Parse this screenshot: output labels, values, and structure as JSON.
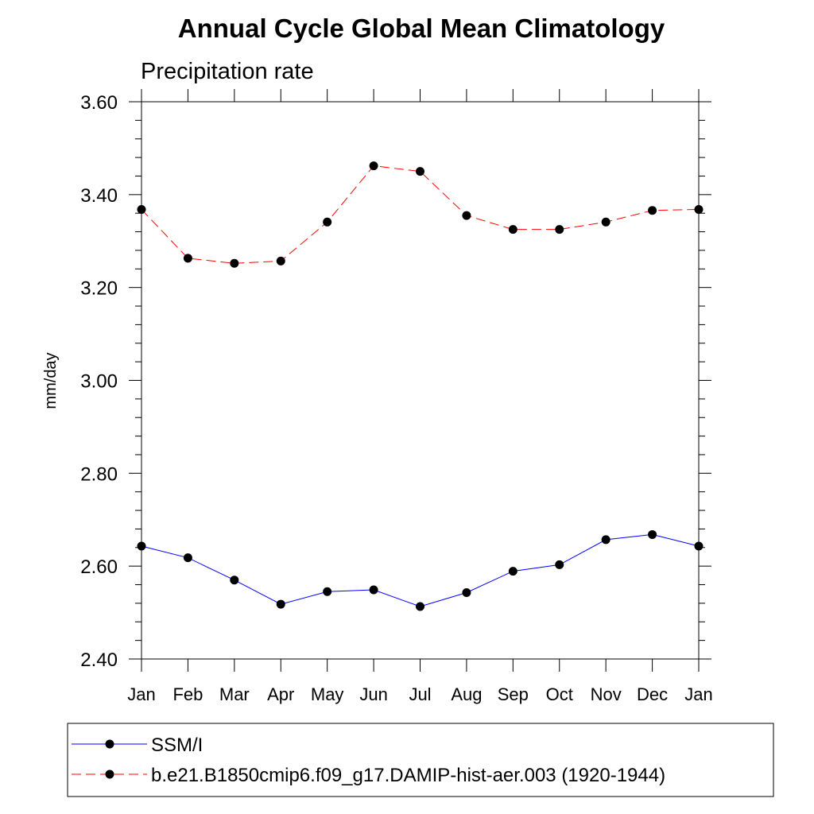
{
  "chart_data": {
    "type": "line",
    "title": "Annual Cycle Global Mean Climatology",
    "subtitle": "Precipitation rate",
    "ylabel": "mm/day",
    "xlabel": "",
    "categories": [
      "Jan",
      "Feb",
      "Mar",
      "Apr",
      "May",
      "Jun",
      "Jul",
      "Aug",
      "Sep",
      "Oct",
      "Nov",
      "Dec",
      "Jan"
    ],
    "ylim": [
      2.4,
      3.6
    ],
    "yticks": [
      "2.40",
      "2.60",
      "2.80",
      "3.00",
      "3.20",
      "3.40",
      "3.60"
    ],
    "legend_position": "bottom",
    "series": [
      {
        "name": "SSM/I",
        "color": "#0000ff",
        "line_style": "solid",
        "marker": "filled-circle",
        "values": [
          2.643,
          2.618,
          2.57,
          2.518,
          2.545,
          2.549,
          2.513,
          2.543,
          2.589,
          2.603,
          2.657,
          2.668,
          2.643
        ]
      },
      {
        "name": "b.e21.B1850cmip6.f09_g17.DAMIP-hist-aer.003 (1920-1944)",
        "color": "#ff0000",
        "line_style": "dashed",
        "marker": "filled-circle",
        "values": [
          3.368,
          3.263,
          3.252,
          3.257,
          3.341,
          3.462,
          3.45,
          3.355,
          3.325,
          3.325,
          3.341,
          3.366,
          3.368
        ]
      }
    ]
  }
}
